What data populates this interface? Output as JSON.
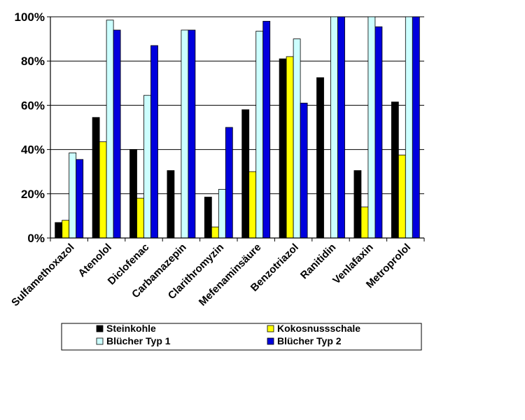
{
  "chart_data": {
    "type": "bar",
    "title": "",
    "xlabel": "",
    "ylabel": "",
    "ylim": [
      0,
      100
    ],
    "y_ticks": [
      "0%",
      "20%",
      "40%",
      "60%",
      "80%",
      "100%"
    ],
    "y_tick_values": [
      0,
      20,
      40,
      60,
      80,
      100
    ],
    "categories": [
      "Sulfamethoxazol",
      "Atenolol",
      "Diclofenac",
      "Carbamazepin",
      "Clarithromyzin",
      "Mefenaminsäure",
      "Benzotriazol",
      "Ranitidin",
      "Venlafaxin",
      "Metroprolol"
    ],
    "series": [
      {
        "name": "Steinkohle",
        "color": "#000000",
        "values": [
          7,
          54.5,
          40,
          30.5,
          18.5,
          58,
          81,
          72.5,
          30.5,
          61.5
        ]
      },
      {
        "name": "Kokosnussschale",
        "color": "#ffff00",
        "values": [
          8,
          43.5,
          18,
          0,
          5,
          30,
          82,
          0,
          14,
          37.5
        ]
      },
      {
        "name": "Blücher Typ 1",
        "color": "#ccffff",
        "values": [
          38.5,
          98.5,
          64.5,
          94,
          22,
          93.5,
          90,
          100,
          100,
          100
        ]
      },
      {
        "name": "Blücher Typ 2",
        "color": "#0000dd",
        "values": [
          35.5,
          94,
          87,
          94,
          50,
          98,
          61,
          100,
          95.5,
          100
        ]
      }
    ],
    "grid": true,
    "legend_position": "bottom"
  }
}
